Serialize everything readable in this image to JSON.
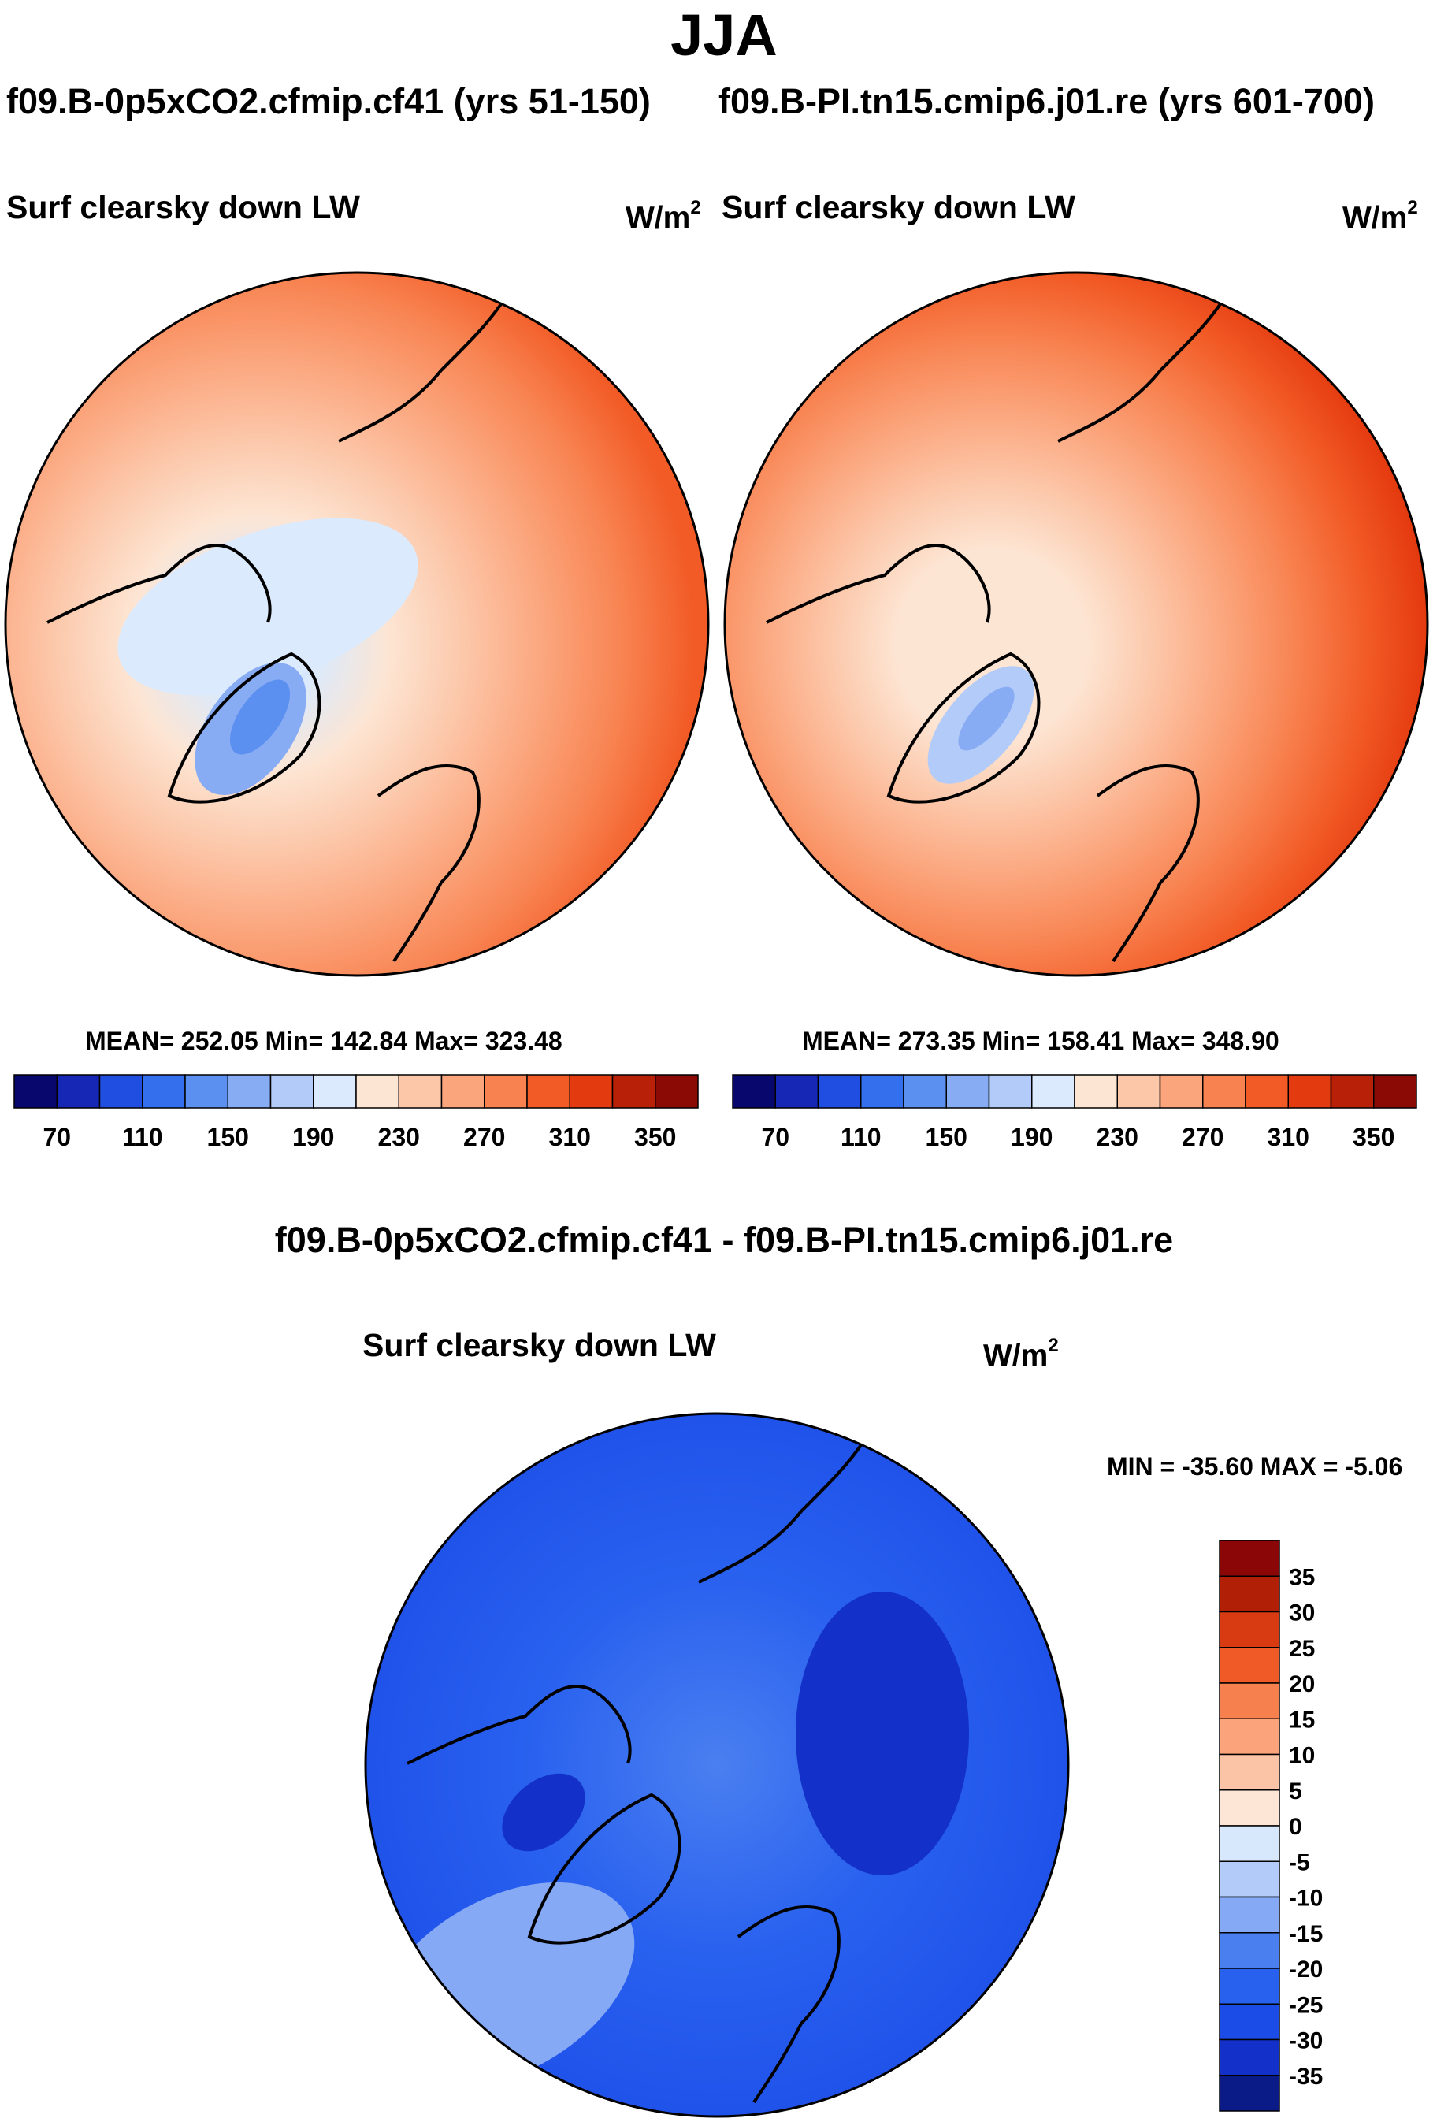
{
  "season": "JJA",
  "case_a": "f09.B-0p5xCO2.cfmip.cf41",
  "case_a_years": "(yrs 51-150)",
  "case_b": "f09.B-PI.tn15.cmip6.j01.re",
  "case_b_years": "(yrs 601-700)",
  "diff_title": "f09.B-0p5xCO2.cfmip.cf41 - f09.B-PI.tn15.cmip6.j01.re",
  "colors": {
    "abs_scale": [
      "#08076e",
      "#1527b4",
      "#1f4ee0",
      "#3470ee",
      "#5b8ff0",
      "#88acf4",
      "#b3cbf8",
      "#dbeafc",
      "#fde5d3",
      "#fcc6a8",
      "#fba57c",
      "#f88351",
      "#f25b26",
      "#e43a0f",
      "#b92008",
      "#8b0a06"
    ],
    "diff_scale": [
      "#0a1a86",
      "#1331c8",
      "#1c4ce8",
      "#2961ef",
      "#4a7ff0",
      "#86a9f5",
      "#b3cbf8",
      "#d8e8fc",
      "#fde6d6",
      "#fcc4a7",
      "#fba37a",
      "#f7804f",
      "#f05a27",
      "#d83a12",
      "#b21f07",
      "#8b0606"
    ]
  },
  "chart_data": [
    {
      "type": "polar-contour-map",
      "case": "f09.B-0p5xCO2.cfmip.cf41",
      "title": "Surf clearsky down LW",
      "units": "W/m²",
      "units_label": "W/m",
      "units_exp": "2",
      "stats": {
        "mean": 252.05,
        "min": 142.84,
        "max": 323.48
      },
      "stats_text": "MEAN= 252.05  Min= 142.84  Max= 323.48",
      "colorbar_levels": [
        70,
        90,
        110,
        130,
        150,
        170,
        190,
        210,
        230,
        250,
        270,
        290,
        310,
        330,
        350
      ],
      "colorbar_tick_labels": [
        "70",
        "110",
        "150",
        "190",
        "230",
        "270",
        "310",
        "350"
      ]
    },
    {
      "type": "polar-contour-map",
      "case": "f09.B-PI.tn15.cmip6.j01.re",
      "title": "Surf clearsky down LW",
      "units": "W/m²",
      "units_label": "W/m",
      "units_exp": "2",
      "stats": {
        "mean": 273.35,
        "min": 158.41,
        "max": 348.9
      },
      "stats_text": "MEAN= 273.35  Min= 158.41  Max= 348.90",
      "colorbar_levels": [
        70,
        90,
        110,
        130,
        150,
        170,
        190,
        210,
        230,
        250,
        270,
        290,
        310,
        330,
        350
      ],
      "colorbar_tick_labels": [
        "70",
        "110",
        "150",
        "190",
        "230",
        "270",
        "310",
        "350"
      ]
    },
    {
      "type": "polar-contour-map",
      "case": "difference",
      "title": "Surf clearsky down LW",
      "units": "W/m²",
      "units_label": "W/m",
      "units_exp": "2",
      "stats": {
        "min": -35.6,
        "max": -5.06
      },
      "stats_text": "MIN = -35.60 MAX =  -5.06",
      "colorbar_levels": [
        35,
        30,
        25,
        20,
        15,
        10,
        5,
        0,
        -5,
        -10,
        -15,
        -20,
        -25,
        -30,
        -35
      ],
      "colorbar_tick_labels": [
        "35",
        "30",
        "25",
        "20",
        "15",
        "10",
        "5",
        "0",
        "-5",
        "-10",
        "-15",
        "-20",
        "-25",
        "-30",
        "-35"
      ]
    }
  ]
}
